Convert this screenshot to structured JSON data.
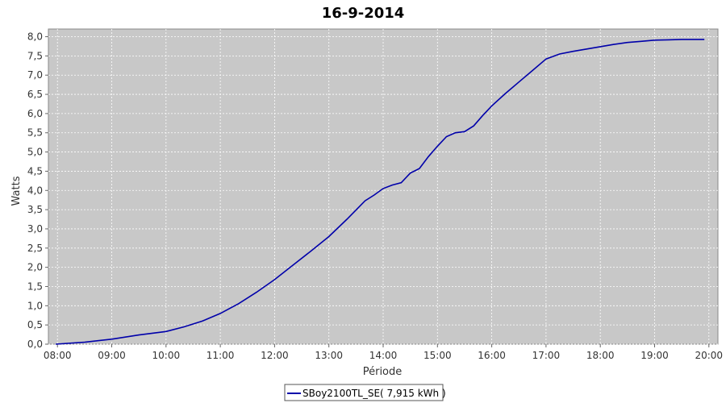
{
  "chart_data": {
    "type": "line",
    "title": "16-9-2014",
    "xlabel": "Période",
    "ylabel": "Watts",
    "x_ticks": [
      "08:00",
      "09:00",
      "10:00",
      "11:00",
      "12:00",
      "13:00",
      "14:00",
      "15:00",
      "16:00",
      "17:00",
      "18:00",
      "19:00",
      "20:00"
    ],
    "y_ticks": [
      "0,0",
      "0,5",
      "1,0",
      "1,5",
      "2,0",
      "2,5",
      "3,0",
      "3,5",
      "4,0",
      "4,5",
      "5,0",
      "5,5",
      "6,0",
      "6,5",
      "7,0",
      "7,5",
      "8,0"
    ],
    "xlim": [
      "07:50",
      "20:10"
    ],
    "ylim": [
      0,
      8.2
    ],
    "grid": true,
    "legend_position": "bottom",
    "colors": {
      "plot_background": "#c8c8c8",
      "grid": "#ffffff",
      "line": "#0000aa"
    },
    "series": [
      {
        "name": "SBoy2100TL_SE( 7,915 kWh )",
        "x": [
          "07:58",
          "08:30",
          "09:00",
          "09:30",
          "10:00",
          "10:20",
          "10:40",
          "11:00",
          "11:20",
          "11:40",
          "12:00",
          "12:20",
          "12:40",
          "13:00",
          "13:20",
          "13:40",
          "13:50",
          "14:00",
          "14:10",
          "14:20",
          "14:30",
          "14:40",
          "14:50",
          "15:00",
          "15:10",
          "15:20",
          "15:30",
          "15:40",
          "15:50",
          "16:00",
          "16:15",
          "16:30",
          "16:45",
          "17:00",
          "17:15",
          "17:30",
          "17:45",
          "18:00",
          "18:15",
          "18:30",
          "18:45",
          "19:00",
          "19:15",
          "19:30",
          "19:45",
          "19:55"
        ],
        "values": [
          0.0,
          0.05,
          0.13,
          0.24,
          0.33,
          0.45,
          0.6,
          0.8,
          1.05,
          1.35,
          1.68,
          2.05,
          2.42,
          2.8,
          3.25,
          3.73,
          3.88,
          4.05,
          4.14,
          4.2,
          4.45,
          4.57,
          4.88,
          5.15,
          5.4,
          5.5,
          5.53,
          5.68,
          5.95,
          6.2,
          6.52,
          6.82,
          7.12,
          7.42,
          7.55,
          7.62,
          7.68,
          7.74,
          7.8,
          7.85,
          7.88,
          7.91,
          7.92,
          7.93,
          7.93,
          7.93
        ]
      }
    ]
  }
}
